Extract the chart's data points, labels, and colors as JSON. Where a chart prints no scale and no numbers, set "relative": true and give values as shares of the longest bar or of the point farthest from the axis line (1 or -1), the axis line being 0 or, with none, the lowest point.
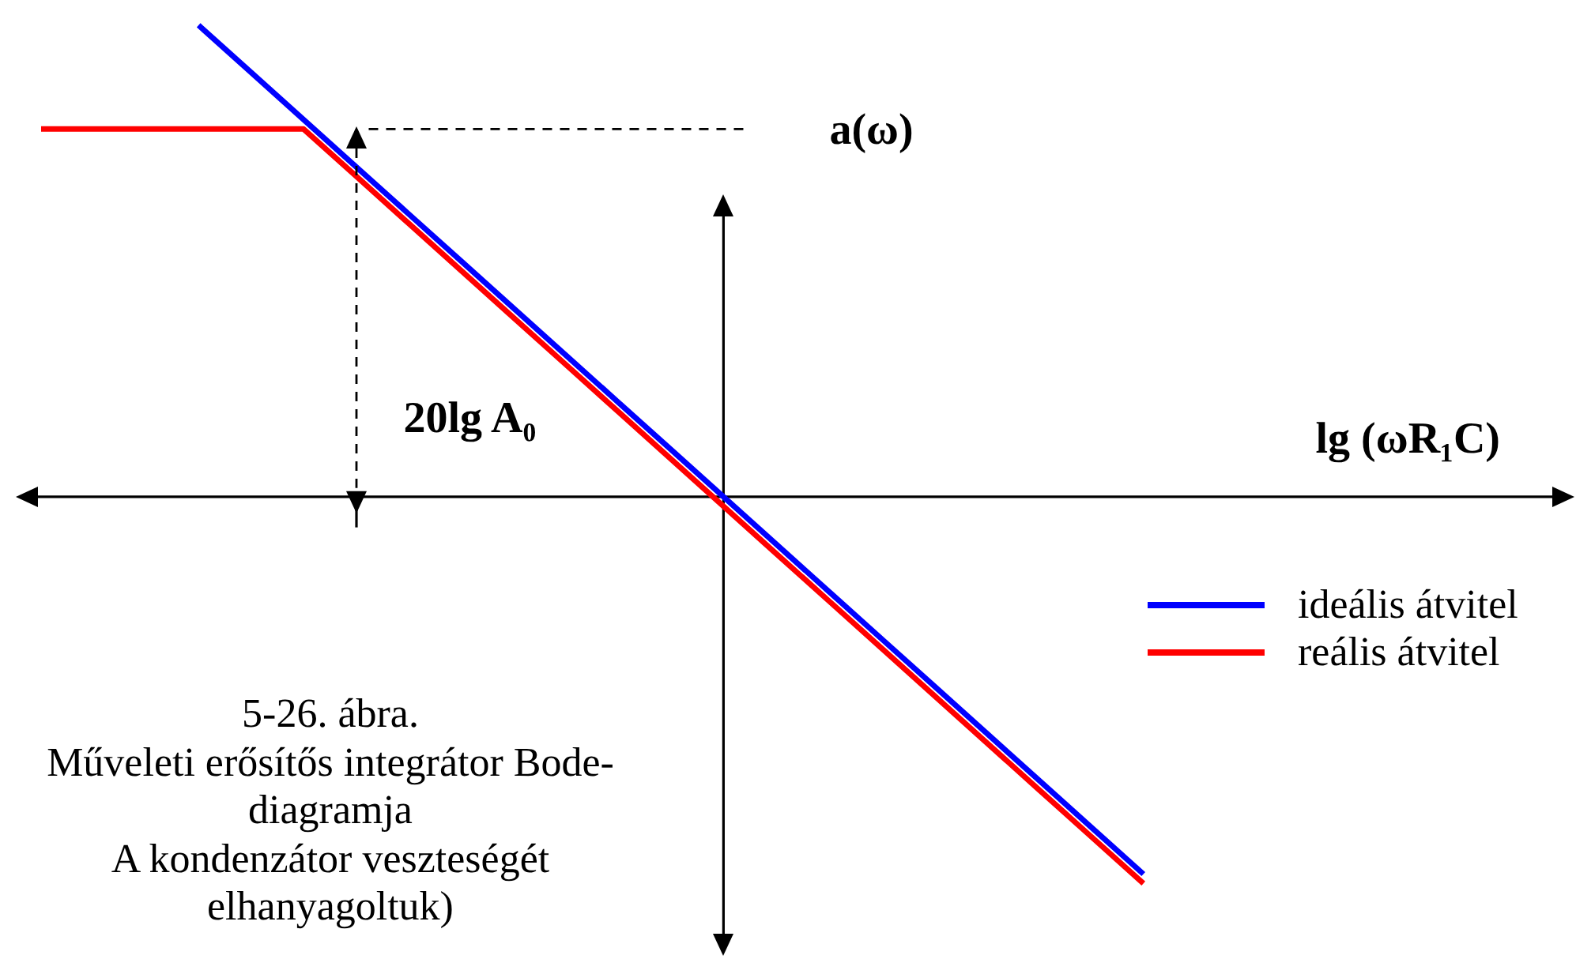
{
  "chart_data": {
    "type": "line",
    "relative": true,
    "xlabel": "lg (ωR₁C)",
    "ylabel": "a(ω)",
    "categories": [
      null,
      null,
      null,
      null,
      null,
      null,
      null,
      null,
      null,
      null,
      null,
      null,
      null,
      null,
      null,
      null,
      null,
      null,
      null,
      null,
      null,
      null,
      null,
      null,
      null,
      null,
      null,
      null,
      null,
      null
    ],
    "series": [
      {
        "name": "ideális átvitel",
        "color": "#0000ff",
        "values": [
          null,
          null,
          null,
          1,
          0.9,
          0.8,
          0.7,
          0.6,
          0.5,
          0.4,
          0.3,
          0.2,
          0.1,
          0,
          -0.1,
          -0.2,
          -0.3,
          -0.4,
          -0.5,
          -0.6,
          -0.7,
          -0.8,
          null,
          null,
          null,
          null,
          null,
          null,
          null,
          null
        ]
      },
      {
        "name": "reális átvitel",
        "color": "#ff0000",
        "values": [
          0.78,
          0.78,
          0.78,
          0.78,
          0.78,
          0.78,
          0.68,
          0.58,
          0.48,
          0.38,
          0.28,
          0.18,
          0.08,
          -0.02,
          -0.12,
          -0.22,
          -0.32,
          -0.42,
          -0.52,
          -0.62,
          -0.72,
          -0.82,
          null,
          null,
          null,
          null,
          null,
          null,
          null,
          null
        ]
      }
    ],
    "ref_lines": [
      {
        "axis": "y",
        "value": 0.78,
        "line_style": "dashed"
      }
    ],
    "legend": "right",
    "annotations": [
      "20lg A₀",
      "5-26. ábra.",
      "Műveleti erősítős integrátor Bode-diagramja",
      "A kondenzátor veszteségét elhanyagoltuk)"
    ]
  }
}
